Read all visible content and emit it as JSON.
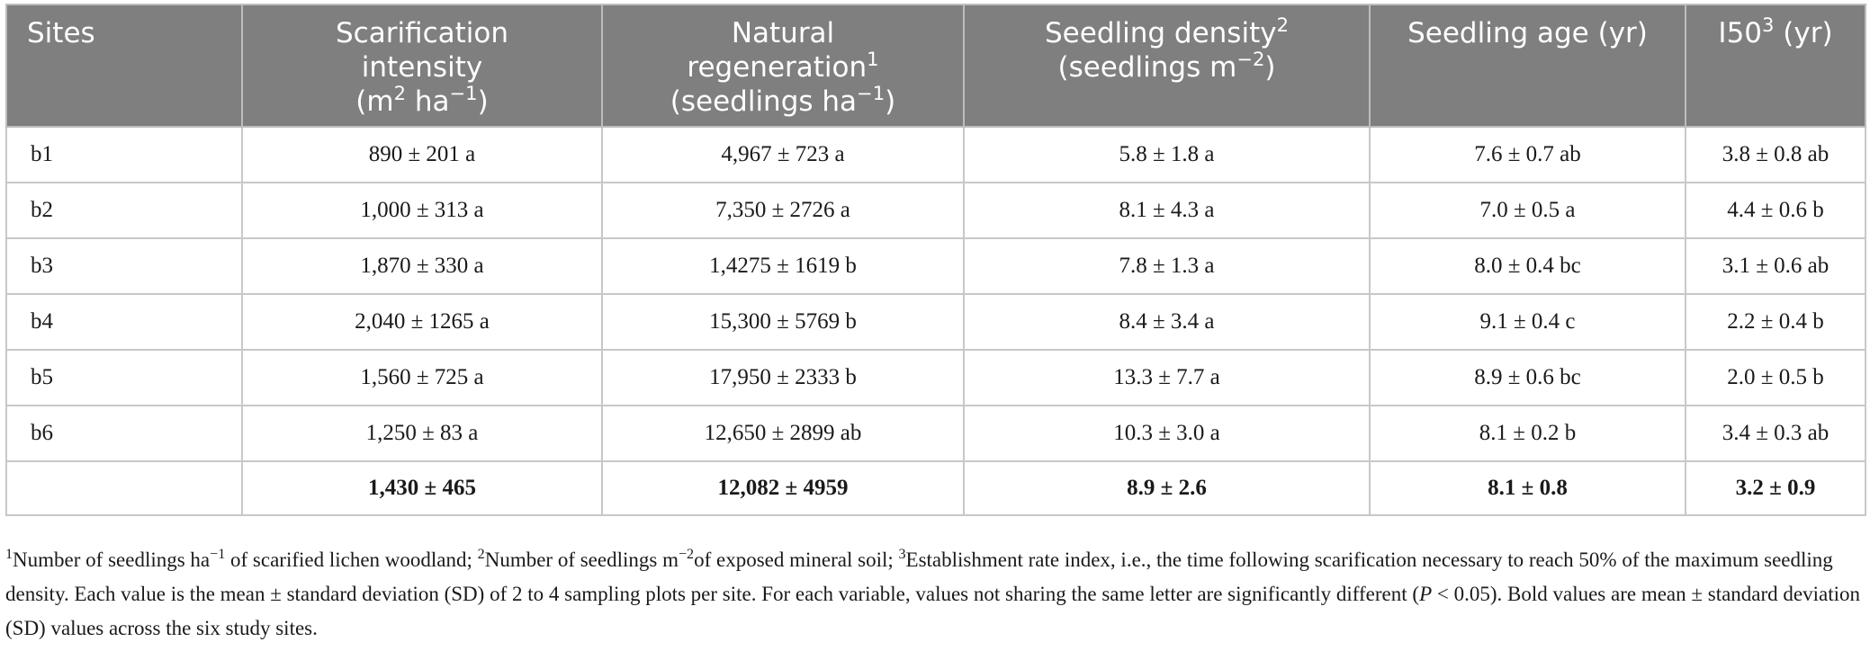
{
  "table": {
    "headers": {
      "sites": "Sites",
      "scar_l1": "Scarification",
      "scar_l2": "intensity",
      "scar_l3_pre": "(m",
      "scar_l3_sup1": "2",
      "scar_l3_mid": " ha",
      "scar_l3_sup2": "−1",
      "scar_l3_post": ")",
      "nat_l1": "Natural",
      "nat_l2": "regeneration",
      "nat_l2_sup": "1",
      "nat_l3_pre": "(seedlings ha",
      "nat_l3_sup": "−1",
      "nat_l3_post": ")",
      "dens_l1": "Seedling density",
      "dens_l1_sup": "2",
      "dens_l2_pre": "(seedlings m",
      "dens_l2_sup": "−2",
      "dens_l2_post": ")",
      "age": "Seedling age (yr)",
      "i50_pre": "I50",
      "i50_sup": "3",
      "i50_post": " (yr)"
    },
    "rows": [
      {
        "site": "b1",
        "scarification": "890 ± 201 a",
        "regeneration": "4,967 ± 723 a",
        "density": "5.8 ± 1.8 a",
        "age": "7.6 ± 0.7 ab",
        "i50": "3.8 ± 0.8 ab"
      },
      {
        "site": "b2",
        "scarification": "1,000 ± 313 a",
        "regeneration": "7,350 ± 2726 a",
        "density": "8.1 ± 4.3 a",
        "age": "7.0 ± 0.5 a",
        "i50": "4.4 ± 0.6 b"
      },
      {
        "site": "b3",
        "scarification": "1,870 ± 330 a",
        "regeneration": "1,4275 ± 1619 b",
        "density": "7.8 ± 1.3 a",
        "age": "8.0 ± 0.4 bc",
        "i50": "3.1 ± 0.6 ab"
      },
      {
        "site": "b4",
        "scarification": "2,040 ± 1265 a",
        "regeneration": "15,300 ± 5769 b",
        "density": "8.4 ± 3.4 a",
        "age": "9.1 ± 0.4 c",
        "i50": "2.2 ± 0.4 b"
      },
      {
        "site": "b5",
        "scarification": "1,560 ± 725 a",
        "regeneration": "17,950 ± 2333 b",
        "density": "13.3 ± 7.7 a",
        "age": "8.9 ± 0.6 bc",
        "i50": "2.0 ± 0.5 b"
      },
      {
        "site": "b6",
        "scarification": "1,250 ± 83 a",
        "regeneration": "12,650 ± 2899 ab",
        "density": "10.3 ± 3.0 a",
        "age": "8.1 ± 0.2 b",
        "i50": "3.4 ± 0.3 ab"
      }
    ],
    "total": {
      "site": "",
      "scarification": "1,430 ± 465",
      "regeneration": "12,082 ± 4959",
      "density": "8.9 ± 2.6",
      "age": "8.1 ± 0.8",
      "i50": "3.2 ± 0.9"
    }
  },
  "footnote": {
    "sup1": "1",
    "t1": "Number of seedlings ha",
    "t1_sup": "−1",
    "t2": " of scarified lichen woodland; ",
    "sup2": "2",
    "t3": "Number of seedlings m",
    "t3_sup": "−2",
    "t4": "of exposed mineral soil; ",
    "sup3": "3",
    "t5": "Establishment rate index, i.e., the time following scarification necessary to reach 50% of the maximum seedling density. Each value is the mean ± standard deviation (SD) of 2 to 4 sampling plots per site. For each variable, values not sharing the same letter are significantly different (",
    "p": "P",
    "t6": " < 0.05). Bold values are mean ± standard deviation (SD) values across the six study sites."
  }
}
